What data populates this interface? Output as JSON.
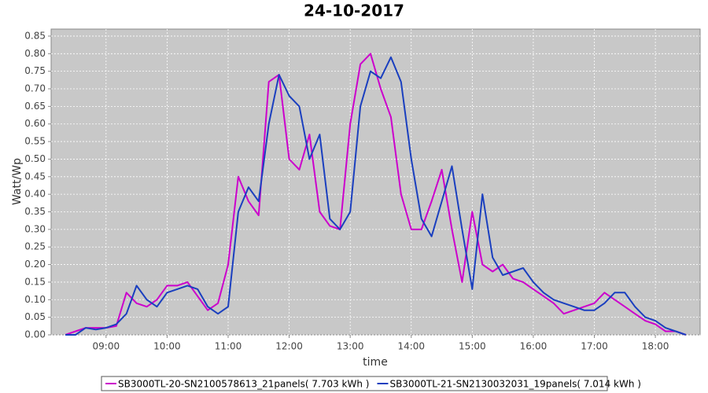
{
  "chart_data": {
    "type": "line",
    "title": "24-10-2017",
    "x_label": "time",
    "y_label": "Watt/Wp",
    "x": [
      "08:20",
      "08:30",
      "08:40",
      "08:50",
      "09:00",
      "09:10",
      "09:20",
      "09:30",
      "09:40",
      "09:50",
      "10:00",
      "10:10",
      "10:20",
      "10:30",
      "10:40",
      "10:50",
      "11:00",
      "11:10",
      "11:20",
      "11:30",
      "11:40",
      "11:50",
      "12:00",
      "12:10",
      "12:20",
      "12:30",
      "12:40",
      "12:50",
      "13:00",
      "13:10",
      "13:20",
      "13:30",
      "13:40",
      "13:50",
      "14:00",
      "14:10",
      "14:20",
      "14:30",
      "14:40",
      "14:50",
      "15:00",
      "15:10",
      "15:20",
      "15:30",
      "15:40",
      "15:50",
      "16:00",
      "16:10",
      "16:20",
      "16:30",
      "16:40",
      "16:50",
      "17:00",
      "17:10",
      "17:20",
      "17:30",
      "17:40",
      "17:50",
      "18:00",
      "18:10",
      "18:20",
      "18:30"
    ],
    "series": [
      {
        "name": "SB3000TL-20-SN2100578613_21panels( 7.703 kWh )",
        "color": "#cc00cc",
        "values": [
          0.0,
          0.01,
          0.02,
          0.02,
          0.02,
          0.025,
          0.12,
          0.09,
          0.08,
          0.1,
          0.14,
          0.14,
          0.15,
          0.11,
          0.07,
          0.09,
          0.2,
          0.45,
          0.38,
          0.34,
          0.72,
          0.74,
          0.5,
          0.47,
          0.57,
          0.35,
          0.31,
          0.3,
          0.6,
          0.77,
          0.8,
          0.7,
          0.62,
          0.4,
          0.3,
          0.3,
          0.38,
          0.47,
          0.3,
          0.15,
          0.35,
          0.2,
          0.18,
          0.2,
          0.16,
          0.15,
          0.13,
          0.11,
          0.09,
          0.06,
          0.07,
          0.08,
          0.09,
          0.12,
          0.1,
          0.08,
          0.06,
          0.04,
          0.03,
          0.01,
          0.01,
          0.0
        ]
      },
      {
        "name": "SB3000TL-21-SN2130032031_19panels( 7.014 kWh )",
        "color": "#1a3fbf",
        "values": [
          0.0,
          0.0,
          0.02,
          0.015,
          0.02,
          0.03,
          0.06,
          0.14,
          0.1,
          0.08,
          0.12,
          0.13,
          0.14,
          0.13,
          0.08,
          0.06,
          0.08,
          0.35,
          0.42,
          0.38,
          0.6,
          0.74,
          0.68,
          0.65,
          0.5,
          0.57,
          0.33,
          0.3,
          0.35,
          0.65,
          0.75,
          0.73,
          0.79,
          0.72,
          0.5,
          0.33,
          0.28,
          0.38,
          0.48,
          0.3,
          0.13,
          0.4,
          0.22,
          0.17,
          0.18,
          0.19,
          0.15,
          0.12,
          0.1,
          0.09,
          0.08,
          0.07,
          0.07,
          0.09,
          0.12,
          0.12,
          0.08,
          0.05,
          0.04,
          0.02,
          0.01,
          0.0
        ]
      }
    ],
    "xlim": [
      "08:06",
      "18:44"
    ],
    "xticks": [
      "09:00",
      "10:00",
      "11:00",
      "12:00",
      "13:00",
      "14:00",
      "15:00",
      "16:00",
      "17:00",
      "18:00"
    ],
    "ylim": [
      0,
      0.87
    ],
    "yticks": [
      {
        "value": 0,
        "label": "0.00"
      },
      0.05,
      {
        "value": 0.1,
        "label": "0.10"
      },
      0.15,
      {
        "value": 0.2,
        "label": "0.20"
      },
      0.25,
      {
        "value": 0.3,
        "label": "0.30"
      },
      0.35,
      {
        "value": 0.4,
        "label": "0.40"
      },
      0.45,
      {
        "value": 0.5,
        "label": "0.50"
      },
      0.55,
      {
        "value": 0.6,
        "label": "0.60"
      },
      0.65,
      {
        "value": 0.7,
        "label": "0.70"
      },
      0.75,
      {
        "value": 0.8,
        "label": "0.80"
      },
      0.85
    ],
    "grid": true,
    "legend": "bottom"
  }
}
